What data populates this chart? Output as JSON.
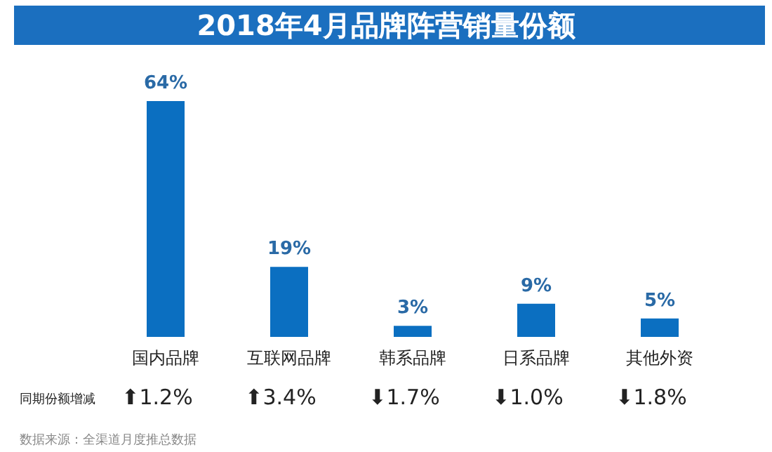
{
  "chart_data": {
    "type": "bar",
    "title": "2018年4月品牌阵营销量份额",
    "categories": [
      "国内品牌",
      "互联网品牌",
      "韩系品牌",
      "日系品牌",
      "其他外资"
    ],
    "values": [
      64,
      19,
      3,
      9,
      5
    ],
    "value_labels": [
      "64%",
      "19%",
      "3%",
      "9%",
      "5%"
    ],
    "color": "#0b6fc1",
    "annotations": [
      "同期份额增减",
      "⬆1.2%",
      "⬆3.4%",
      "⬇1.7%",
      "⬇1.0%",
      "⬇1.8%",
      "数据来源：全渠道月度推总数据"
    ]
  }
}
